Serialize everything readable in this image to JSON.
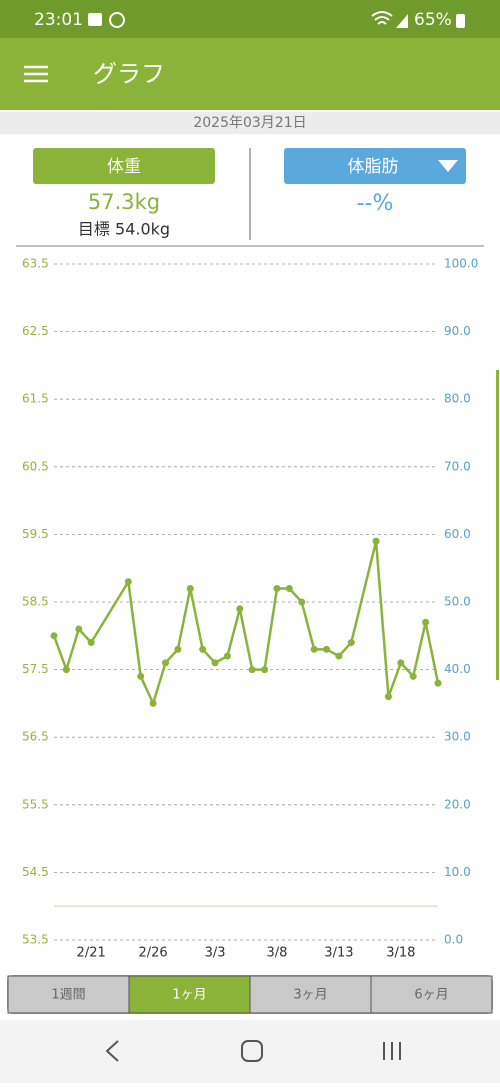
{
  "status_bar": {
    "time": "23:01",
    "battery": "65%"
  },
  "header": {
    "title": "グラフ"
  },
  "date": "2025年03月21日",
  "panels": {
    "weight": {
      "label": "体重",
      "value": "57.3kg",
      "target": "目標 54.0kg"
    },
    "body_fat": {
      "label": "体脂肪",
      "value": "--%"
    }
  },
  "chart_data": {
    "type": "line",
    "series": [
      {
        "name": "体重",
        "color": "#8ab33a",
        "values": [
          58.0,
          57.5,
          58.1,
          57.9,
          58.8,
          57.4,
          57.0,
          57.6,
          57.8,
          58.7,
          57.8,
          57.6,
          57.7,
          58.4,
          57.5,
          57.5,
          58.7,
          58.7,
          58.5,
          57.8,
          57.8,
          57.7,
          57.9,
          59.4,
          57.1,
          57.6,
          57.4,
          58.2,
          57.3
        ]
      }
    ],
    "x": [
      "2/18",
      "2/19",
      "2/20",
      "2/21",
      "2/24",
      "2/25",
      "2/26",
      "2/27",
      "2/28",
      "3/1",
      "3/2",
      "3/3",
      "3/4",
      "3/5",
      "3/6",
      "3/7",
      "3/8",
      "3/9",
      "3/10",
      "3/11",
      "3/12",
      "3/13",
      "3/14",
      "3/16",
      "3/17",
      "3/18",
      "3/19",
      "3/20",
      "3/21"
    ],
    "xlim": [
      "2/18",
      "3/21"
    ],
    "xticks": [
      "2/21",
      "2/26",
      "3/3",
      "3/8",
      "3/13",
      "3/18"
    ],
    "ylim": [
      53.5,
      63.5
    ],
    "yticks": [
      53.5,
      54.5,
      55.5,
      56.5,
      57.5,
      58.5,
      59.5,
      60.5,
      61.5,
      62.5,
      63.5
    ],
    "y2lim": [
      0,
      100
    ],
    "y2ticks": [
      {
        "value": 0,
        "label": "0.0"
      },
      {
        "value": 10,
        "label": "10.0"
      },
      {
        "value": 20,
        "label": "20.0"
      },
      {
        "value": 30,
        "label": "30.0"
      },
      {
        "value": 40,
        "label": "40.0"
      },
      {
        "value": 50,
        "label": "50.0"
      },
      {
        "value": 60,
        "label": "60.0"
      },
      {
        "value": 70,
        "label": "70.0"
      },
      {
        "value": 80,
        "label": "80.0"
      },
      {
        "value": 90,
        "label": "90.0"
      },
      {
        "value": 100,
        "label": "100.0"
      }
    ],
    "target": 54.0,
    "target_color": "#ebe6d2",
    "y_color": "#9ab040",
    "y2_color": "#5aa0c8",
    "grid": true
  },
  "tabs": [
    "1週間",
    "1ヶ月",
    "3ヶ月",
    "6ヶ月"
  ],
  "selected_tab": 1
}
